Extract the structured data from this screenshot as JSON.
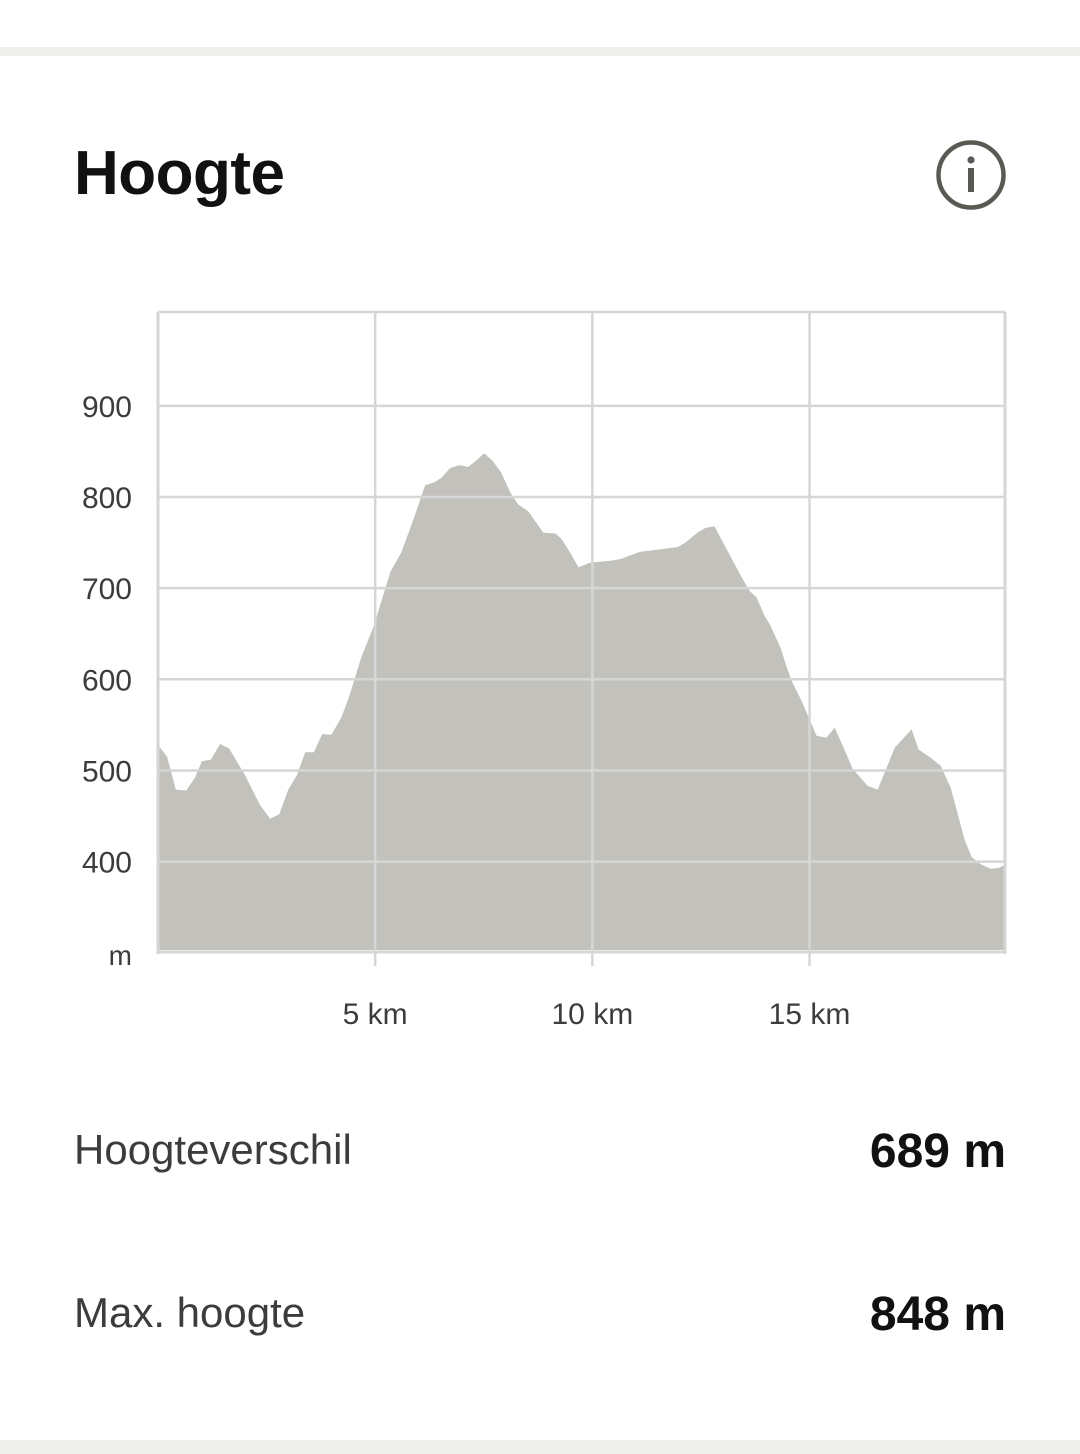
{
  "header": {
    "title": "Hoogte",
    "info_icon": "info-circle-icon"
  },
  "colors": {
    "area": "#c2c1bc",
    "grid": "#d6d6d6",
    "text": "#3c3c3a",
    "icon": "#5a5a55"
  },
  "chart_data": {
    "type": "area",
    "title": "",
    "xlabel": "",
    "ylabel": "m",
    "grid": true,
    "xlim": [
      0,
      19.5
    ],
    "ylim": [
      303,
      1003
    ],
    "x_ticks": [
      5,
      10,
      15
    ],
    "x_tick_labels": [
      "5 km",
      "10 km",
      "15 km"
    ],
    "y_ticks": [
      400,
      500,
      600,
      700,
      800,
      900
    ],
    "y_tick_labels": [
      "400",
      "500",
      "600",
      "700",
      "800",
      "900"
    ],
    "x": [
      0,
      0.21,
      0.41,
      0.65,
      0.85,
      1.01,
      1.22,
      1.43,
      1.64,
      2.0,
      2.35,
      2.58,
      2.79,
      3.0,
      3.2,
      3.39,
      3.59,
      3.78,
      3.99,
      4.22,
      4.4,
      4.68,
      4.98,
      5.35,
      5.6,
      5.9,
      6.15,
      6.36,
      6.52,
      6.73,
      6.94,
      7.14,
      7.3,
      7.51,
      7.7,
      7.9,
      8.11,
      8.29,
      8.53,
      8.69,
      8.87,
      9.15,
      9.29,
      9.49,
      9.68,
      9.95,
      10.41,
      10.65,
      11.1,
      11.45,
      11.96,
      12.14,
      12.42,
      12.6,
      12.81,
      13.46,
      13.62,
      13.78,
      13.96,
      14.1,
      14.33,
      14.49,
      14.61,
      14.79,
      15.02,
      15.16,
      15.39,
      15.58,
      15.83,
      15.99,
      16.34,
      16.57,
      16.8,
      16.96,
      17.35,
      17.51,
      17.79,
      18.02,
      18.25,
      18.57,
      18.73,
      18.94,
      19.17,
      19.35,
      19.52
    ],
    "y": [
      528,
      515,
      479,
      478,
      492,
      510,
      512,
      529,
      524,
      495,
      462,
      447,
      452,
      479,
      495,
      520,
      520,
      540,
      539,
      558,
      581,
      624,
      660,
      718,
      739,
      778,
      813,
      816,
      821,
      832,
      835,
      833,
      839,
      848,
      840,
      827,
      805,
      792,
      784,
      773,
      761,
      760,
      754,
      739,
      723,
      728,
      730,
      732,
      740,
      742,
      745,
      750,
      761,
      766,
      768,
      710,
      697,
      690,
      670,
      659,
      635,
      611,
      596,
      579,
      554,
      538,
      536,
      547,
      520,
      502,
      483,
      479,
      506,
      525,
      545,
      523,
      514,
      505,
      481,
      424,
      405,
      397,
      392,
      393,
      397
    ]
  },
  "stats": [
    {
      "label": "Hoogteverschil",
      "value": "689 m"
    },
    {
      "label": "Max. hoogte",
      "value": "848 m"
    }
  ]
}
